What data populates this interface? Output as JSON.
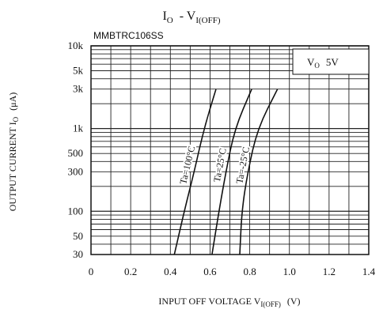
{
  "chart_data": {
    "type": "line",
    "title": "I",
    "title_sub": "O",
    "title_sep": "  - V",
    "title_sub2": "I(OFF)",
    "part_number": "MMBTRC106SS",
    "condition_label": "V",
    "condition_sub": "O",
    "condition_value": "5V",
    "ylabel": "OUTPUT CURRENT I",
    "ylabel_sub": "O",
    "ylabel_unit": "(μA)",
    "xlabel": "INPUT OFF VOLTAGE V",
    "xlabel_sub": "I(OFF)",
    "xlabel_unit": "(V)",
    "x_scale": "linear",
    "y_scale": "log",
    "xlim": [
      0,
      1.4
    ],
    "ylim": [
      30,
      10000
    ],
    "x_ticks": [
      0,
      0.2,
      0.4,
      0.6,
      0.8,
      1.0,
      1.2,
      1.4
    ],
    "x_tick_labels": [
      "0",
      "0.2",
      "0.4",
      "0.6",
      "0.8",
      "1.0",
      "1.2",
      "1.4"
    ],
    "y_ticks": [
      30,
      50,
      100,
      300,
      500,
      1000,
      3000,
      5000,
      10000
    ],
    "y_tick_labels": [
      "30",
      "50",
      "100",
      "300",
      "500",
      "1k",
      "3k",
      "5k",
      "10k"
    ],
    "grid": true,
    "series": [
      {
        "name": "Ta=100°C",
        "x": [
          0.42,
          0.47,
          0.52,
          0.57,
          0.63
        ],
        "y": [
          30,
          100,
          300,
          1000,
          3000
        ]
      },
      {
        "name": "Ta=25°C",
        "x": [
          0.61,
          0.645,
          0.68,
          0.725,
          0.81
        ],
        "y": [
          30,
          100,
          300,
          1000,
          3000
        ]
      },
      {
        "name": "Ta=-25°C",
        "x": [
          0.75,
          0.76,
          0.79,
          0.84,
          0.94
        ],
        "y": [
          30,
          100,
          300,
          1000,
          3000
        ]
      }
    ]
  }
}
